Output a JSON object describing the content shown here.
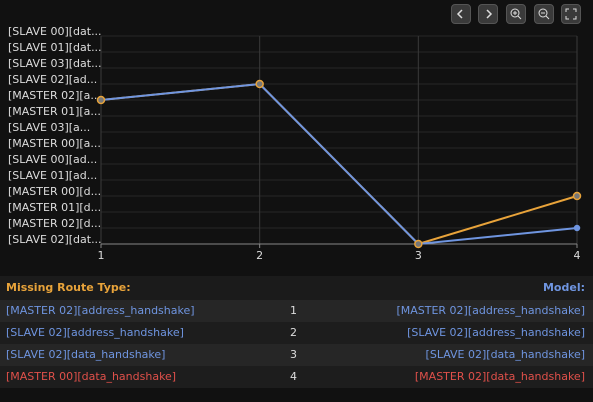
{
  "chart_data": {
    "type": "line",
    "x": [
      1,
      2,
      3,
      4
    ],
    "xlim": [
      1,
      4
    ],
    "xticks": [
      1,
      2,
      3,
      4
    ],
    "y_categories": [
      "[SLAVE 00][dat...",
      "[SLAVE 01][dat...",
      "[SLAVE 03][dat...",
      "[SLAVE 02][ad...",
      "[MASTER 02][a...",
      "[MASTER 01][a...",
      "[SLAVE 03][a...",
      "[MASTER 00][a...",
      "[SLAVE 00][ad...",
      "[SLAVE 01][ad...",
      "[MASTER 00][d...",
      "[MASTER 01][d...",
      "[MASTER 02][d...",
      "[SLAVE 02][dat..."
    ],
    "series": [
      {
        "color": "#e8a33a",
        "values": [
          "[MASTER 02][a...",
          "[SLAVE 02][ad...",
          "[SLAVE 02][dat...",
          "[MASTER 00][d..."
        ]
      },
      {
        "color": "#6f95e0",
        "values": [
          "[MASTER 02][a...",
          "[SLAVE 02][ad...",
          "[SLAVE 02][dat...",
          "[MASTER 02][d..."
        ]
      }
    ],
    "grid": true
  },
  "table": {
    "header": [
      "Missing Route Type:",
      "Model:"
    ],
    "rows": [
      {
        "color": "#6f95e0",
        "cells": [
          "[MASTER 02][address_handshake]",
          1,
          "[MASTER 02][address_handshake]"
        ]
      },
      {
        "color": "#6f95e0",
        "cells": [
          "[SLAVE 02][address_handshake]",
          2,
          "[SLAVE 02][address_handshake]"
        ]
      },
      {
        "color": "#6f95e0",
        "cells": [
          "[SLAVE 02][data_handshake]",
          3,
          "[SLAVE 02][data_handshake]"
        ]
      },
      {
        "color": "#e0504a",
        "cells": [
          "[MASTER 00][data_handshake]",
          4,
          "[MASTER 02][data_handshake]"
        ]
      }
    ]
  }
}
